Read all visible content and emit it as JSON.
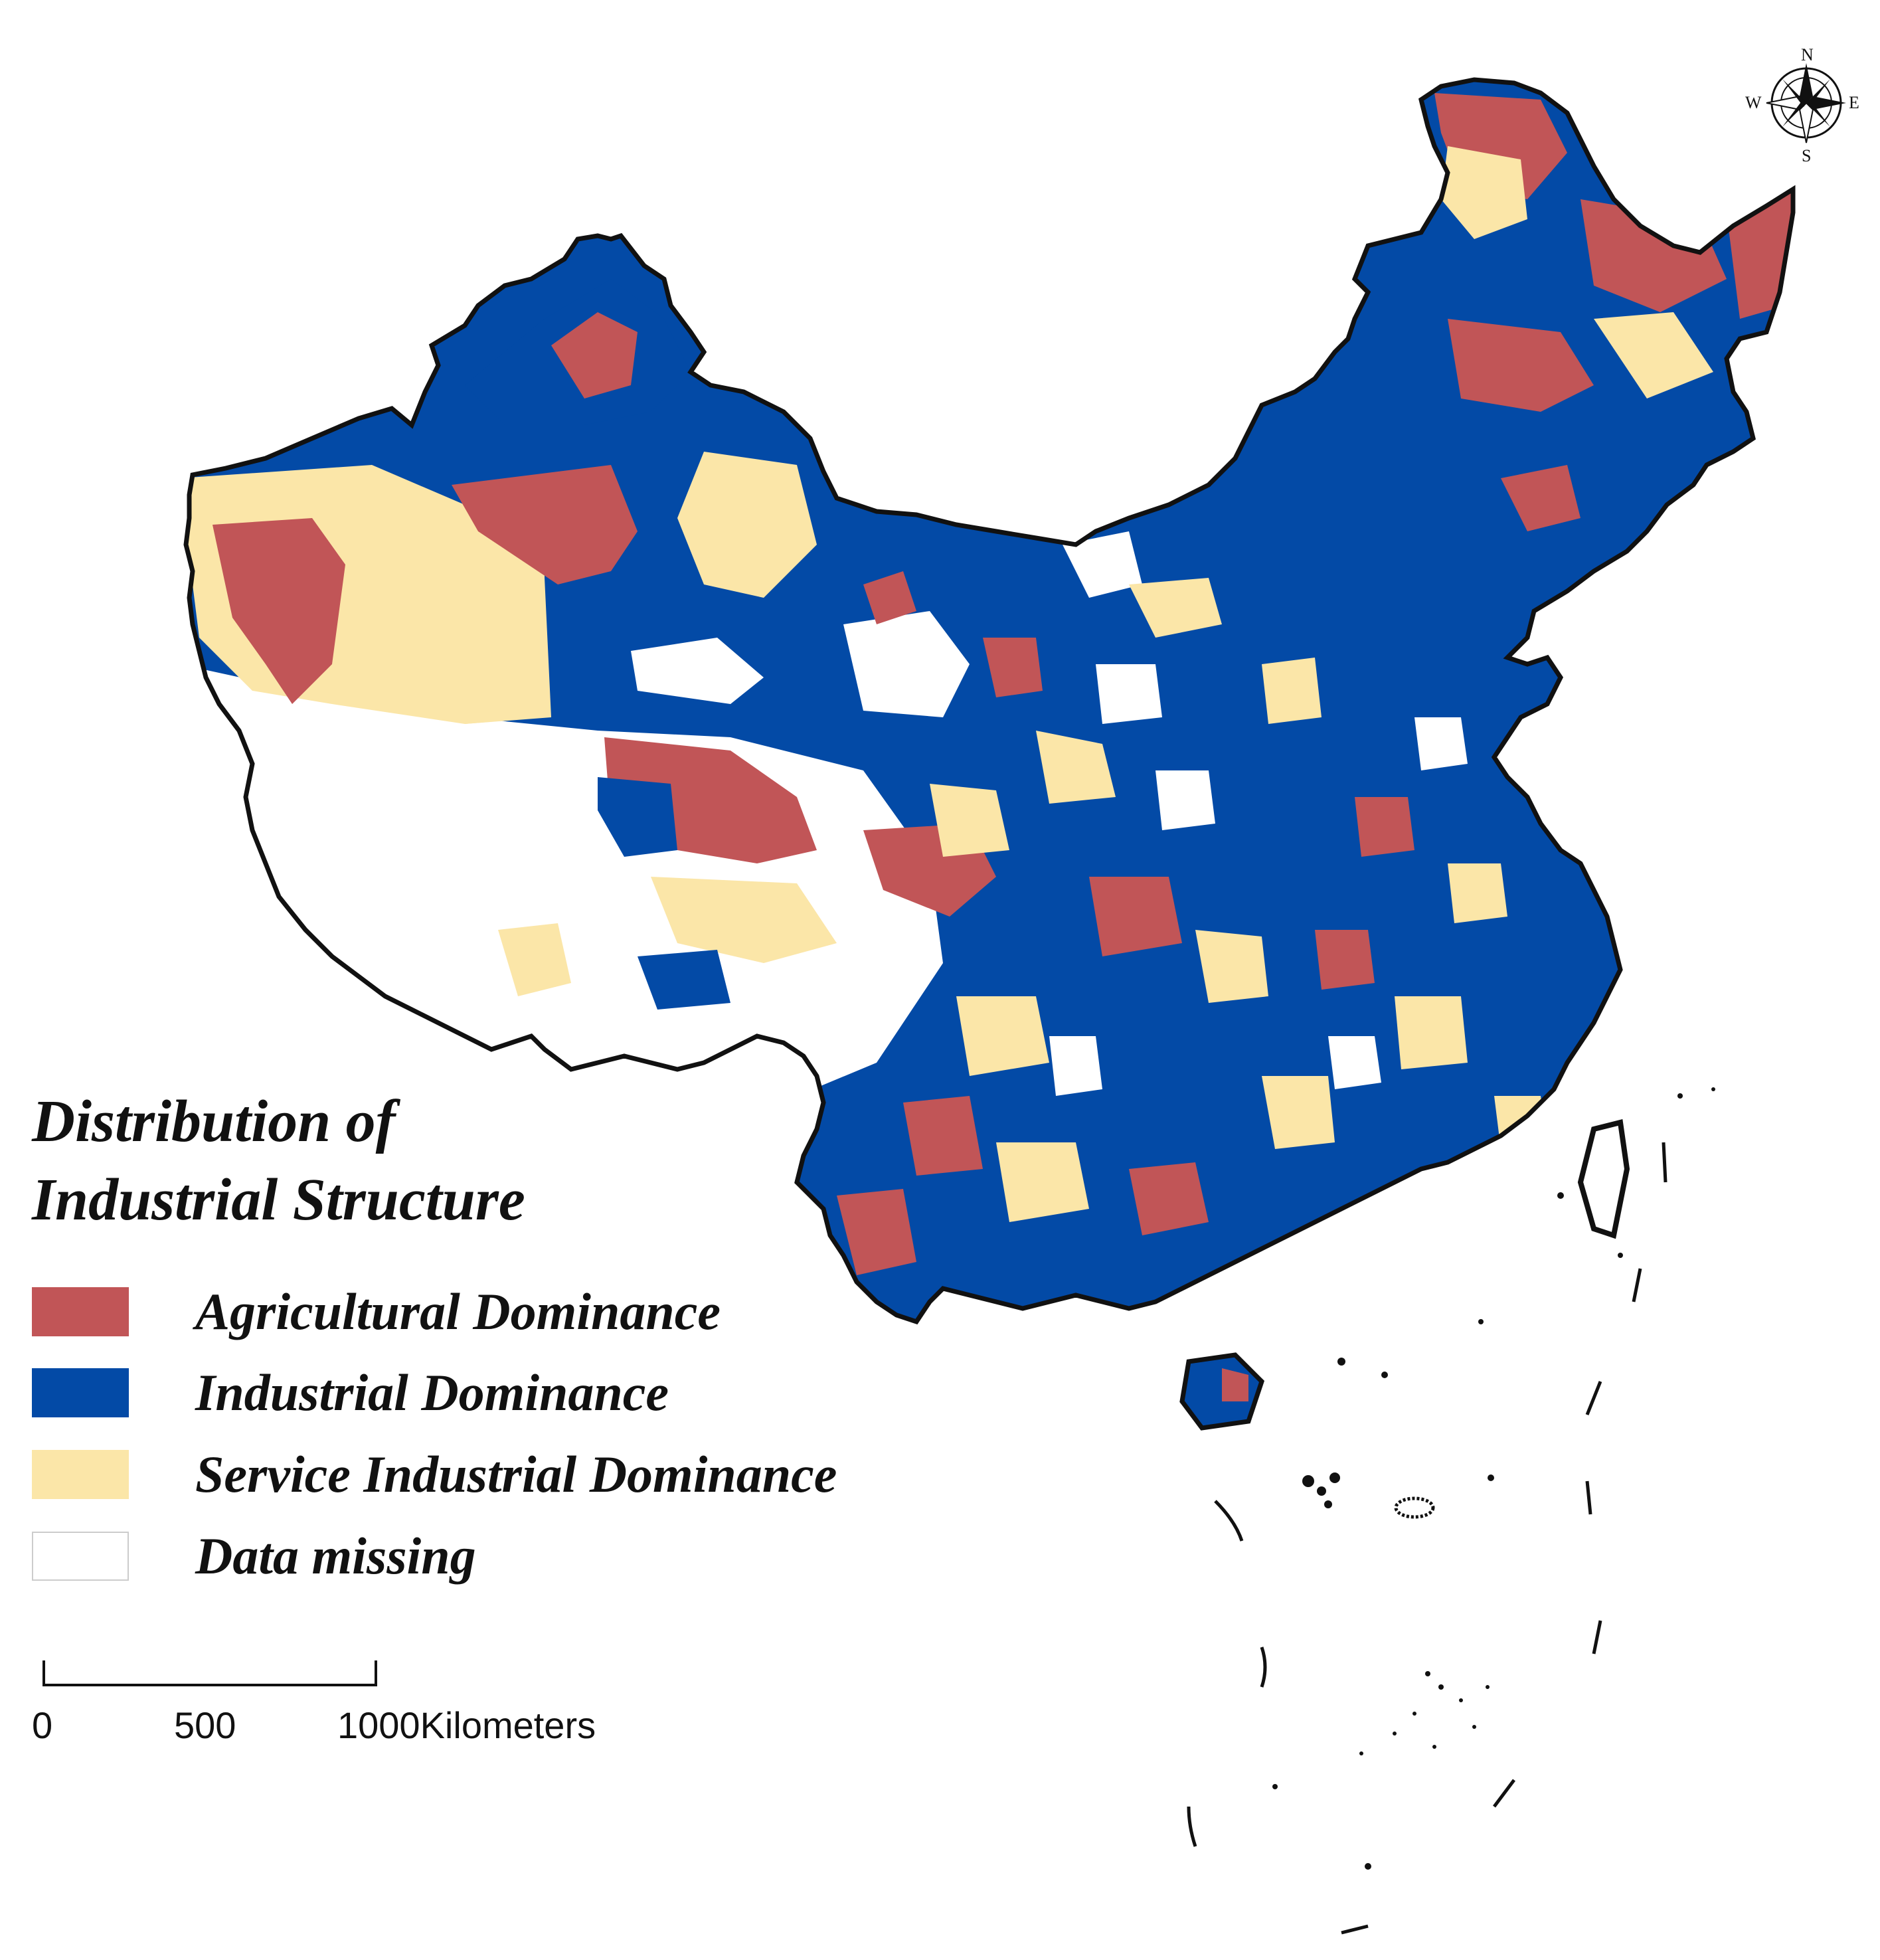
{
  "legend": {
    "title_line1": "Distribution of",
    "title_line2": "Industrial Structure",
    "items": [
      {
        "label": "Agricultural Dominance",
        "color": "#c15557"
      },
      {
        "label": "Industrial Dominance",
        "color": "#034aa6"
      },
      {
        "label": "Service Industrial Dominance",
        "color": "#fbe6a8"
      },
      {
        "label": "Data missing",
        "color": "#ffffff"
      }
    ]
  },
  "scale_bar": {
    "ticks": [
      "0",
      "500",
      "1000"
    ],
    "unit": "Kilometers"
  },
  "compass": {
    "n": "N",
    "s": "S",
    "e": "E",
    "w": "W"
  },
  "colors": {
    "agricultural": "#c15557",
    "industrial": "#034aa6",
    "service": "#fbe6a8",
    "missing": "#ffffff",
    "border": "#111111"
  }
}
